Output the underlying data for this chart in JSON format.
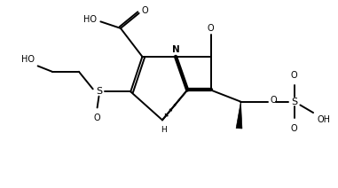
{
  "bg_color": "#ffffff",
  "line_color": "#000000",
  "line_width": 1.4,
  "figsize": [
    3.81,
    2.12
  ],
  "dpi": 100,
  "xlim": [
    0,
    10
  ],
  "ylim": [
    0,
    5.56
  ]
}
